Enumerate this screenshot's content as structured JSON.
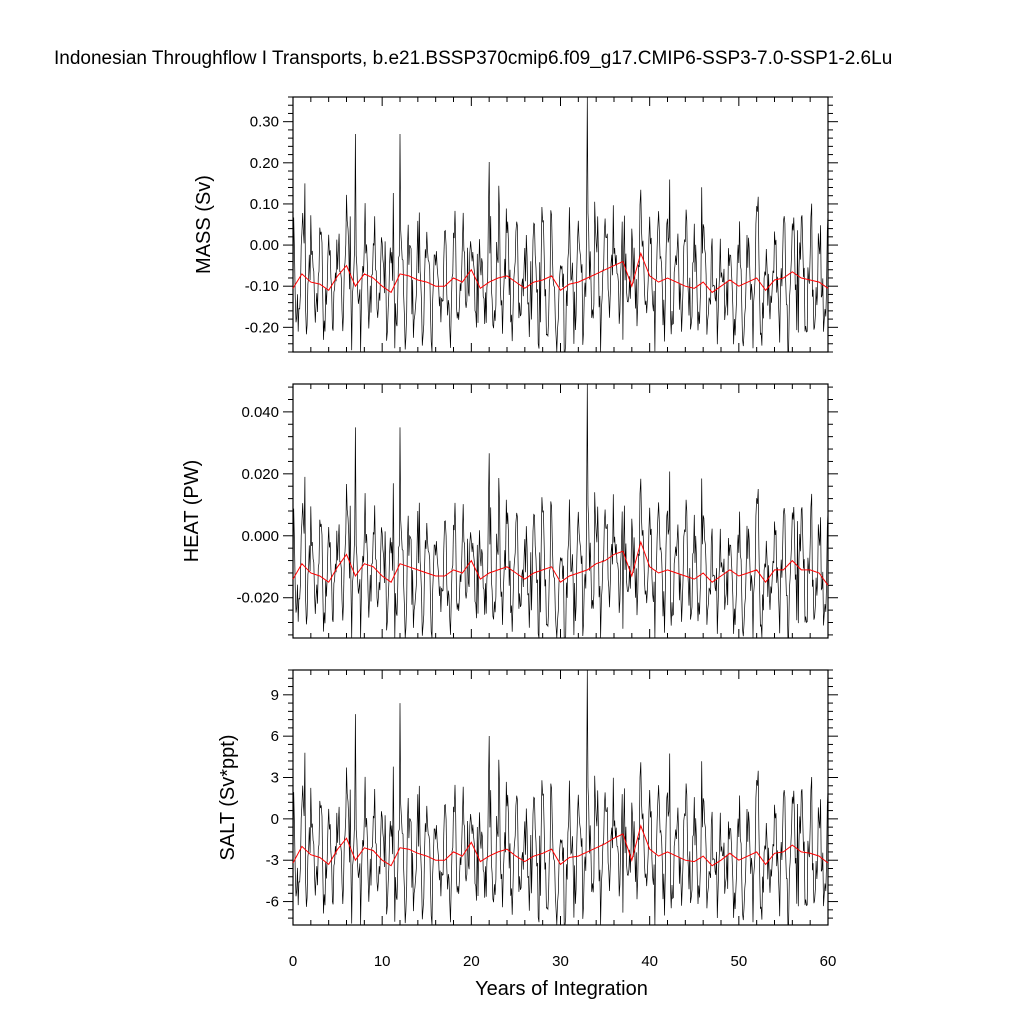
{
  "chart_data": {
    "type": "line",
    "title": "Indonesian Throughflow I Transports, b.e21.BSSP370cmip6.f09_g17.CMIP6-SSP3-7.0-SSP1-2.6Lu",
    "xlabel": "Years of Integration",
    "xlim": [
      0,
      60
    ],
    "xticks": [
      "0",
      "10",
      "20",
      "30",
      "40",
      "50",
      "60"
    ],
    "panels": [
      {
        "ylabel": "MASS (Sv)",
        "ylim": [
          -0.26,
          0.36
        ],
        "yticks": [
          -0.2,
          -0.1,
          0.0,
          0.1,
          0.2,
          0.3
        ],
        "ytick_labels": [
          "-0.20",
          "-0.10",
          "0.00",
          "0.10",
          "0.20",
          "0.30"
        ],
        "spikes": [
          [
            1.3,
            0.15
          ],
          [
            7.0,
            0.27
          ],
          [
            12.0,
            0.27
          ],
          [
            17.7,
            -0.25
          ],
          [
            33.0,
            0.36
          ],
          [
            37.0,
            -0.23
          ]
        ],
        "annual_mean": [
          -0.105,
          -0.07,
          -0.09,
          -0.095,
          -0.11,
          -0.075,
          -0.05,
          -0.1,
          -0.07,
          -0.08,
          -0.1,
          -0.115,
          -0.07,
          -0.075,
          -0.085,
          -0.09,
          -0.1,
          -0.1,
          -0.08,
          -0.09,
          -0.06,
          -0.105,
          -0.09,
          -0.08,
          -0.075,
          -0.09,
          -0.105,
          -0.09,
          -0.085,
          -0.075,
          -0.11,
          -0.095,
          -0.09,
          -0.08,
          -0.07,
          -0.06,
          -0.05,
          -0.04,
          -0.1,
          -0.02,
          -0.075,
          -0.09,
          -0.08,
          -0.09,
          -0.1,
          -0.105,
          -0.09,
          -0.115,
          -0.1,
          -0.085,
          -0.1,
          -0.09,
          -0.08,
          -0.11,
          -0.085,
          -0.08,
          -0.065,
          -0.08,
          -0.085,
          -0.09,
          -0.105
        ]
      },
      {
        "ylabel": "HEAT (PW)",
        "ylim": [
          -0.033,
          0.049
        ],
        "yticks": [
          -0.02,
          0.0,
          0.02,
          0.04
        ],
        "ytick_labels": [
          "-0.020",
          "0.000",
          "0.020",
          "0.040"
        ],
        "spikes": [
          [
            1.3,
            0.019
          ],
          [
            7.0,
            0.035
          ],
          [
            12.0,
            0.035
          ],
          [
            17.7,
            -0.032
          ],
          [
            33.0,
            0.049
          ],
          [
            37.0,
            -0.03
          ]
        ],
        "annual_mean": [
          -0.014,
          -0.009,
          -0.012,
          -0.013,
          -0.015,
          -0.01,
          -0.006,
          -0.013,
          -0.009,
          -0.01,
          -0.013,
          -0.015,
          -0.009,
          -0.01,
          -0.011,
          -0.012,
          -0.013,
          -0.013,
          -0.011,
          -0.012,
          -0.008,
          -0.014,
          -0.012,
          -0.011,
          -0.01,
          -0.012,
          -0.014,
          -0.012,
          -0.011,
          -0.01,
          -0.015,
          -0.013,
          -0.012,
          -0.011,
          -0.009,
          -0.008,
          -0.006,
          -0.005,
          -0.013,
          -0.002,
          -0.01,
          -0.012,
          -0.011,
          -0.012,
          -0.013,
          -0.014,
          -0.012,
          -0.015,
          -0.013,
          -0.011,
          -0.013,
          -0.012,
          -0.011,
          -0.015,
          -0.011,
          -0.011,
          -0.008,
          -0.011,
          -0.011,
          -0.012,
          -0.016
        ]
      },
      {
        "ylabel": "SALT (Sv*ppt)",
        "ylim": [
          -7.7,
          10.8
        ],
        "yticks": [
          -6,
          -3,
          0,
          3,
          6,
          9
        ],
        "ytick_labels": [
          "-6",
          "-3",
          "0",
          "3",
          "6",
          "9"
        ],
        "spikes": [
          [
            1.3,
            4.8
          ],
          [
            7.0,
            7.6
          ],
          [
            12.0,
            8.4
          ],
          [
            17.7,
            -7.5
          ],
          [
            33.0,
            10.8
          ],
          [
            37.0,
            -6.8
          ]
        ],
        "annual_mean": [
          -3.2,
          -2.0,
          -2.6,
          -2.8,
          -3.3,
          -2.2,
          -1.4,
          -3.0,
          -2.1,
          -2.3,
          -3.0,
          -3.4,
          -2.1,
          -2.2,
          -2.5,
          -2.7,
          -3.0,
          -3.0,
          -2.4,
          -2.7,
          -1.7,
          -3.1,
          -2.7,
          -2.4,
          -2.2,
          -2.7,
          -3.1,
          -2.7,
          -2.5,
          -2.2,
          -3.3,
          -2.8,
          -2.7,
          -2.4,
          -2.1,
          -1.8,
          -1.4,
          -1.1,
          -3.0,
          -0.5,
          -2.2,
          -2.7,
          -2.4,
          -2.7,
          -3.0,
          -3.1,
          -2.7,
          -3.4,
          -3.0,
          -2.5,
          -3.0,
          -2.7,
          -2.4,
          -3.3,
          -2.5,
          -2.4,
          -1.9,
          -2.4,
          -2.5,
          -2.7,
          -3.2
        ]
      }
    ],
    "series": [
      {
        "style": "monthly",
        "color": "#000000"
      },
      {
        "style": "annual mean",
        "color": "#ff0000"
      }
    ],
    "grid": false
  }
}
